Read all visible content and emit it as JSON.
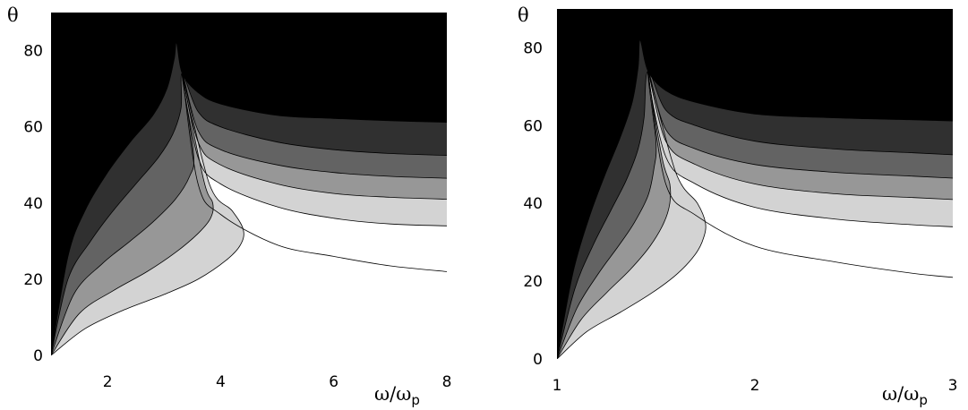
{
  "chart_data": [
    {
      "type": "area",
      "title": "",
      "xlabel": "ω/ω",
      "xlabel_sub": "p",
      "ylabel": "θ",
      "xlim": [
        1,
        8
      ],
      "ylim": [
        0,
        90
      ],
      "xticks": [
        2,
        4,
        6,
        8
      ],
      "yticks": [
        0,
        20,
        40,
        60,
        80
      ],
      "grid": false,
      "legend": "none",
      "band_fills": [
        "#000000",
        "#303030",
        "#636363",
        "#979797",
        "#d3d3d3",
        "#ffffff"
      ],
      "cusp": {
        "x": 3.22,
        "y": 82
      },
      "boundaries": [
        {
          "x": [
            1.0,
            1.3,
            1.6,
            2.0,
            2.4,
            2.8,
            3.05,
            3.18,
            3.22,
            3.32,
            3.6,
            4.0,
            5.0,
            6.0,
            7.0,
            8.0
          ],
          "y": [
            0,
            26,
            38,
            48,
            56,
            63,
            70,
            78,
            82,
            74,
            69,
            66,
            63,
            62.2,
            61.6,
            61.2
          ]
        },
        {
          "x": [
            1.0,
            1.3,
            1.7,
            2.1,
            2.5,
            2.9,
            3.15,
            3.3,
            3.32,
            3.6,
            4.0,
            5.0,
            6.0,
            7.0,
            8.0
          ],
          "y": [
            0,
            20,
            30,
            38,
            45,
            52,
            58,
            65,
            74,
            64,
            60,
            56,
            54,
            53,
            52.5
          ]
        },
        {
          "x": [
            1.0,
            1.4,
            1.9,
            2.4,
            2.8,
            3.2,
            3.45,
            3.52,
            3.32,
            3.6,
            4.0,
            5.0,
            6.0,
            7.0,
            8.0
          ],
          "y": [
            0,
            16,
            24,
            30,
            35,
            41,
            47,
            53,
            74,
            59,
            54,
            50,
            48,
            47,
            46.5
          ]
        },
        {
          "x": [
            1.0,
            1.5,
            2.1,
            2.7,
            3.2,
            3.6,
            3.82,
            3.86,
            3.7,
            3.32,
            3.6,
            4.0,
            5.0,
            6.0,
            7.0,
            8.0
          ],
          "y": [
            0,
            11,
            17,
            22,
            27,
            32,
            36,
            40,
            46,
            74,
            56,
            50,
            45,
            42.5,
            41.5,
            41
          ]
        },
        {
          "x": [
            1.0,
            1.6,
            2.3,
            3.0,
            3.6,
            4.1,
            4.35,
            4.4,
            4.2,
            3.8,
            3.32,
            3.6,
            4.0,
            5.0,
            6.0,
            7.0,
            8.0
          ],
          "y": [
            0,
            7,
            12,
            16,
            20,
            25,
            29,
            33,
            38,
            45,
            74,
            52,
            45,
            39,
            36,
            34.5,
            34
          ]
        },
        {
          "x": [
            3.32,
            3.6,
            4.0,
            5.0,
            6.0,
            7.0,
            8.0
          ],
          "y": [
            74,
            45,
            37,
            29,
            26,
            23.5,
            22
          ]
        }
      ]
    },
    {
      "type": "area",
      "title": "",
      "xlabel": "ω/ω",
      "xlabel_sub": "p",
      "ylabel": "θ",
      "xlim": [
        1,
        3
      ],
      "ylim": [
        0,
        90
      ],
      "xticks": [
        1,
        2,
        3
      ],
      "yticks": [
        0,
        20,
        40,
        60,
        80
      ],
      "grid": false,
      "legend": "none",
      "band_fills": [
        "#000000",
        "#303030",
        "#636363",
        "#979797",
        "#d3d3d3",
        "#ffffff"
      ],
      "cusp": {
        "x": 1.42,
        "y": 82
      },
      "boundaries": [
        {
          "x": [
            1.0,
            1.08,
            1.16,
            1.24,
            1.32,
            1.38,
            1.41,
            1.42,
            1.46,
            1.55,
            1.7,
            2.0,
            2.4,
            2.8,
            3.0
          ],
          "y": [
            0,
            22,
            36,
            47,
            57,
            66,
            75,
            82,
            74,
            69,
            66,
            63,
            62,
            61.5,
            61.2
          ]
        },
        {
          "x": [
            1.0,
            1.09,
            1.18,
            1.27,
            1.35,
            1.41,
            1.44,
            1.46,
            1.55,
            1.7,
            2.0,
            2.4,
            2.8,
            3.0
          ],
          "y": [
            0,
            18,
            29,
            38,
            46,
            54,
            62,
            74,
            64,
            60,
            56,
            54,
            53,
            52.5
          ]
        },
        {
          "x": [
            1.0,
            1.1,
            1.21,
            1.31,
            1.39,
            1.46,
            1.49,
            1.5,
            1.46,
            1.55,
            1.7,
            2.0,
            2.4,
            2.8,
            3.0
          ],
          "y": [
            0,
            13,
            22,
            29,
            35,
            42,
            49,
            56,
            74,
            59,
            54,
            50,
            48,
            47,
            46.5
          ]
        },
        {
          "x": [
            1.0,
            1.12,
            1.25,
            1.37,
            1.47,
            1.54,
            1.57,
            1.57,
            1.53,
            1.46,
            1.55,
            1.7,
            2.0,
            2.4,
            2.8,
            3.0
          ],
          "y": [
            0,
            10,
            17,
            23,
            29,
            35,
            40,
            45,
            52,
            74,
            56,
            50,
            45,
            42.5,
            41.5,
            41
          ]
        },
        {
          "x": [
            1.0,
            1.15,
            1.32,
            1.48,
            1.61,
            1.7,
            1.74,
            1.75,
            1.71,
            1.6,
            1.46,
            1.55,
            1.7,
            2.0,
            2.4,
            2.8,
            3.0
          ],
          "y": [
            0,
            7,
            12,
            17,
            22,
            27,
            31,
            35,
            40,
            48,
            74,
            52,
            45,
            39,
            36,
            34.5,
            34
          ]
        },
        {
          "x": [
            1.46,
            1.55,
            1.7,
            2.0,
            2.4,
            2.8,
            3.0
          ],
          "y": [
            74,
            45,
            37,
            29,
            25,
            22,
            21
          ]
        }
      ]
    }
  ]
}
